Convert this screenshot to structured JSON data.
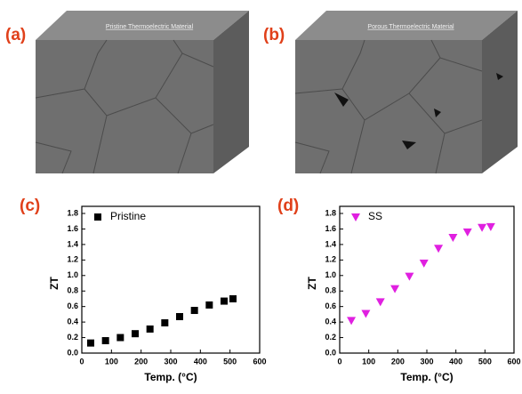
{
  "figure": {
    "panels": [
      {
        "label": "(a)",
        "text": "Pristine Thermoelectric Material"
      },
      {
        "label": "(b)",
        "text": "Porous Thermoelectric Material"
      }
    ]
  },
  "chart_data": [
    {
      "type": "scatter",
      "label": "(c)",
      "xlabel": "Temp. (°C)",
      "ylabel": "ZT",
      "x": [
        30,
        80,
        130,
        180,
        230,
        280,
        330,
        380,
        430,
        480,
        510
      ],
      "series": [
        {
          "name": "Pristine",
          "color": "#000000",
          "marker": "square",
          "values": [
            0.13,
            0.16,
            0.2,
            0.25,
            0.31,
            0.39,
            0.47,
            0.55,
            0.62,
            0.67,
            0.7
          ]
        }
      ],
      "xlim": [
        0,
        600
      ],
      "xticks": [
        0,
        100,
        200,
        300,
        400,
        500,
        600
      ],
      "ylim": [
        0,
        1.8
      ],
      "yticks": [
        {
          "value": 0,
          "label": "0.0"
        },
        0.2,
        0.4,
        0.6,
        0.8,
        {
          "value": 1,
          "label": "1.0"
        },
        1.2,
        1.4,
        1.6,
        1.8
      ],
      "legend": "upper left"
    },
    {
      "type": "scatter",
      "label": "(d)",
      "xlabel": "Temp. (°C)",
      "ylabel": "ZT",
      "x": [
        40,
        90,
        140,
        190,
        240,
        290,
        340,
        390,
        440,
        490,
        520
      ],
      "series": [
        {
          "name": "SS",
          "color": "#e020e0",
          "marker": "triangle-down",
          "values": [
            0.42,
            0.51,
            0.66,
            0.83,
            0.99,
            1.16,
            1.35,
            1.49,
            1.56,
            1.62,
            1.63
          ]
        }
      ],
      "xlim": [
        0,
        600
      ],
      "xticks": [
        0,
        100,
        200,
        300,
        400,
        500,
        600
      ],
      "ylim": [
        0,
        1.8
      ],
      "yticks": [
        {
          "value": 0,
          "label": "0.0"
        },
        0.2,
        0.4,
        0.6,
        0.8,
        {
          "value": 1,
          "label": "1.0"
        },
        1.2,
        1.4,
        1.6,
        1.8
      ],
      "legend": "upper left"
    }
  ]
}
